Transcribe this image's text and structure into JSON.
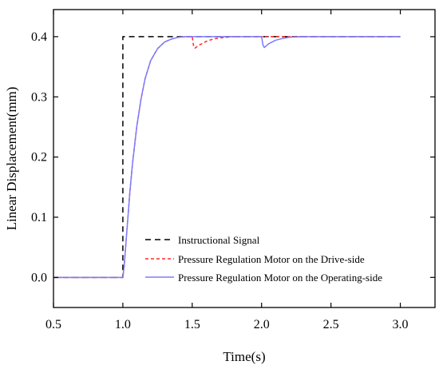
{
  "chart_data": {
    "type": "line",
    "title": "",
    "xlabel": "Time(s)",
    "ylabel": "Linear Displacement(mm)",
    "xlim": [
      0.5,
      3.25
    ],
    "ylim": [
      -0.05,
      0.445
    ],
    "x_ticks": [
      0.5,
      1.0,
      1.5,
      2.0,
      2.5,
      3.0
    ],
    "x_tick_labels": [
      "0.5",
      "1.0",
      "1.5",
      "2.0",
      "2.5",
      "3.0"
    ],
    "y_ticks": [
      0.0,
      0.1,
      0.2,
      0.3,
      0.4
    ],
    "y_tick_labels": [
      "0.0",
      "0.1",
      "0.2",
      "0.3",
      "0.4"
    ],
    "grid": false,
    "legend_position": "lower-right",
    "series": [
      {
        "name": "Instructional Signal",
        "color": "#000000",
        "dash": "dashed",
        "points": [
          [
            0.5,
            0.0
          ],
          [
            1.0,
            0.0
          ],
          [
            1.0,
            0.4
          ],
          [
            3.0,
            0.4
          ]
        ]
      },
      {
        "name": "Pressure Regulation Motor on the Drive-side",
        "color": "#ff2a2a",
        "dash": "dotted",
        "points": [
          [
            0.5,
            0.0
          ],
          [
            1.0,
            0.0
          ],
          [
            1.01,
            0.02
          ],
          [
            1.03,
            0.08
          ],
          [
            1.05,
            0.14
          ],
          [
            1.07,
            0.19
          ],
          [
            1.1,
            0.25
          ],
          [
            1.13,
            0.295
          ],
          [
            1.16,
            0.33
          ],
          [
            1.2,
            0.36
          ],
          [
            1.25,
            0.38
          ],
          [
            1.3,
            0.391
          ],
          [
            1.35,
            0.396
          ],
          [
            1.4,
            0.399
          ],
          [
            1.45,
            0.4
          ],
          [
            1.5,
            0.4
          ],
          [
            1.51,
            0.384
          ],
          [
            1.52,
            0.381
          ],
          [
            1.55,
            0.386
          ],
          [
            1.6,
            0.392
          ],
          [
            1.65,
            0.396
          ],
          [
            1.7,
            0.398
          ],
          [
            1.8,
            0.4
          ],
          [
            2.0,
            0.4
          ],
          [
            2.5,
            0.4
          ],
          [
            3.0,
            0.4
          ]
        ]
      },
      {
        "name": "Pressure Regulation Motor on the Operating-side",
        "color": "#7b7bff",
        "dash": "solid",
        "points": [
          [
            0.5,
            0.0
          ],
          [
            1.0,
            0.0
          ],
          [
            1.01,
            0.02
          ],
          [
            1.03,
            0.08
          ],
          [
            1.05,
            0.14
          ],
          [
            1.07,
            0.19
          ],
          [
            1.1,
            0.25
          ],
          [
            1.13,
            0.295
          ],
          [
            1.16,
            0.33
          ],
          [
            1.2,
            0.36
          ],
          [
            1.25,
            0.38
          ],
          [
            1.3,
            0.391
          ],
          [
            1.35,
            0.396
          ],
          [
            1.4,
            0.399
          ],
          [
            1.45,
            0.4
          ],
          [
            1.5,
            0.4
          ],
          [
            2.0,
            0.4
          ],
          [
            2.01,
            0.386
          ],
          [
            2.02,
            0.382
          ],
          [
            2.05,
            0.388
          ],
          [
            2.1,
            0.394
          ],
          [
            2.15,
            0.397
          ],
          [
            2.2,
            0.399
          ],
          [
            2.3,
            0.4
          ],
          [
            2.5,
            0.4
          ],
          [
            3.0,
            0.4
          ]
        ]
      }
    ]
  }
}
